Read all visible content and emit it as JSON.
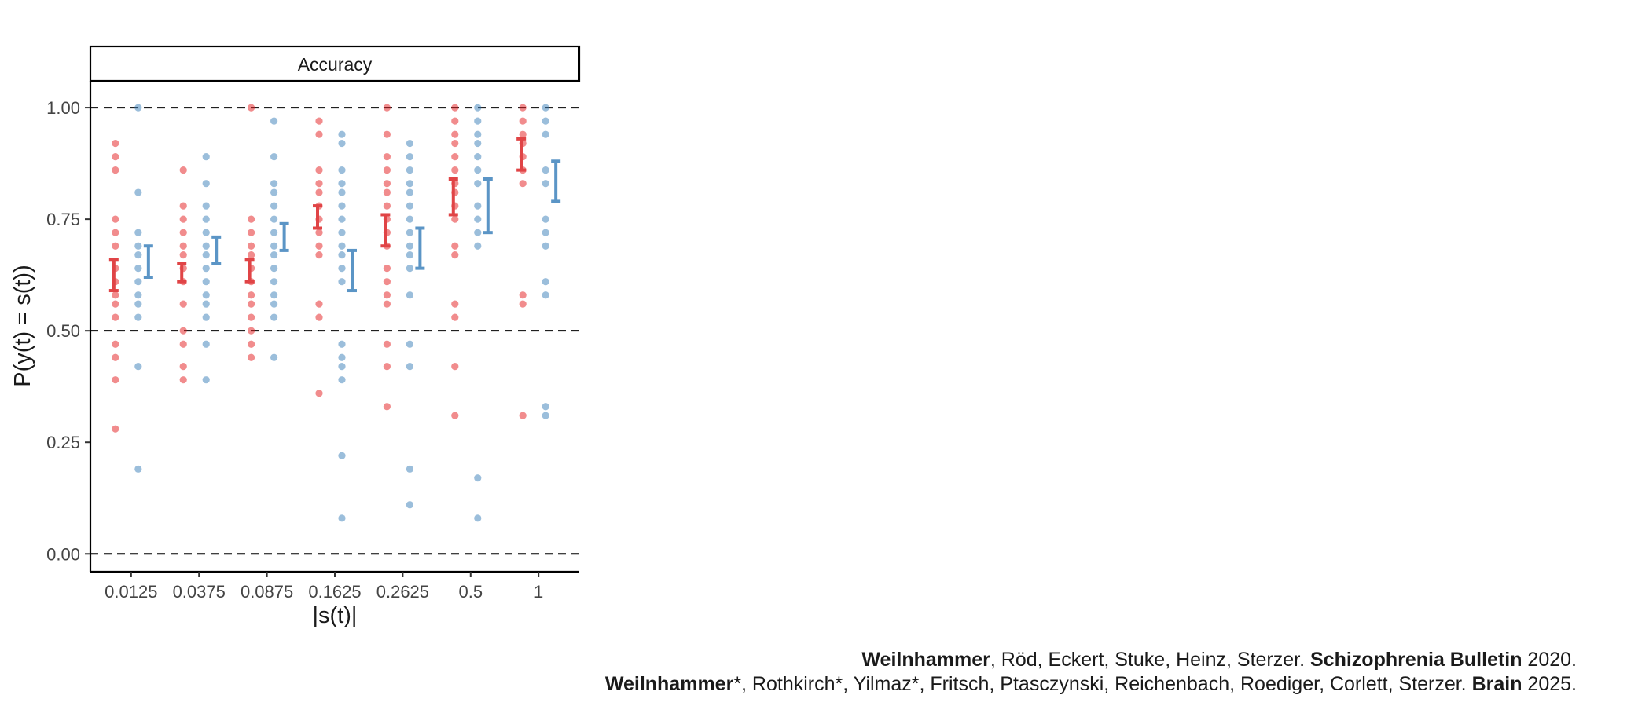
{
  "chart_data": {
    "type": "scatter",
    "title": "",
    "panel_title": "Accuracy",
    "xlabel": "|s(t)|",
    "ylabel": "P(y(t) = s(t))",
    "categories": [
      "0.0125",
      "0.0375",
      "0.0875",
      "0.1625",
      "0.2625",
      "0.5",
      "1"
    ],
    "ylim": [
      -0.04,
      1.06
    ],
    "yticks": [
      "0.00",
      "0.25",
      "0.50",
      "0.75",
      "1.00"
    ],
    "ytick_values": [
      0,
      0.25,
      0.5,
      0.75,
      1
    ],
    "reference_lines": [
      0,
      0.5,
      1
    ],
    "grid": false,
    "legend": "none",
    "series": [
      {
        "color": "#e41a1c",
        "points": [
          [
            0.92,
            0.89,
            0.86,
            0.75,
            0.72,
            0.69,
            0.64,
            0.61,
            0.58,
            0.56,
            0.53,
            0.47,
            0.44,
            0.39,
            0.28
          ],
          [
            0.86,
            0.78,
            0.75,
            0.72,
            0.69,
            0.67,
            0.64,
            0.61,
            0.56,
            0.5,
            0.47,
            0.42,
            0.39
          ],
          [
            1.0,
            0.75,
            0.72,
            0.69,
            0.67,
            0.64,
            0.61,
            0.58,
            0.56,
            0.53,
            0.5,
            0.47,
            0.44
          ],
          [
            0.97,
            0.94,
            0.86,
            0.83,
            0.81,
            0.78,
            0.75,
            0.72,
            0.69,
            0.67,
            0.56,
            0.53,
            0.36
          ],
          [
            1.0,
            0.94,
            0.89,
            0.86,
            0.83,
            0.81,
            0.78,
            0.75,
            0.72,
            0.69,
            0.64,
            0.61,
            0.58,
            0.56,
            0.47,
            0.42,
            0.33
          ],
          [
            1.0,
            0.97,
            0.94,
            0.92,
            0.89,
            0.86,
            0.83,
            0.81,
            0.78,
            0.75,
            0.69,
            0.67,
            0.56,
            0.53,
            0.42,
            0.31
          ],
          [
            1.0,
            0.97,
            0.94,
            0.92,
            0.89,
            0.86,
            0.83,
            0.58,
            0.56,
            0.31
          ]
        ],
        "error_bars": [
          [
            0.59,
            0.66
          ],
          [
            0.61,
            0.65
          ],
          [
            0.61,
            0.66
          ],
          [
            0.73,
            0.78
          ],
          [
            0.69,
            0.76
          ],
          [
            0.76,
            0.84
          ],
          [
            0.86,
            0.93
          ]
        ]
      },
      {
        "color": "#377eb8",
        "points": [
          [
            1.0,
            0.81,
            0.72,
            0.69,
            0.67,
            0.64,
            0.61,
            0.58,
            0.56,
            0.53,
            0.42,
            0.19
          ],
          [
            0.89,
            0.83,
            0.78,
            0.75,
            0.72,
            0.69,
            0.67,
            0.64,
            0.61,
            0.58,
            0.56,
            0.53,
            0.47,
            0.39
          ],
          [
            0.97,
            0.89,
            0.83,
            0.81,
            0.78,
            0.75,
            0.72,
            0.69,
            0.67,
            0.64,
            0.61,
            0.58,
            0.56,
            0.53,
            0.44
          ],
          [
            0.94,
            0.92,
            0.86,
            0.83,
            0.81,
            0.78,
            0.75,
            0.72,
            0.69,
            0.67,
            0.64,
            0.61,
            0.47,
            0.44,
            0.42,
            0.39,
            0.22,
            0.08
          ],
          [
            0.92,
            0.89,
            0.86,
            0.83,
            0.81,
            0.78,
            0.75,
            0.72,
            0.69,
            0.67,
            0.64,
            0.58,
            0.47,
            0.42,
            0.19,
            0.11
          ],
          [
            1.0,
            0.97,
            0.94,
            0.92,
            0.89,
            0.86,
            0.83,
            0.78,
            0.75,
            0.72,
            0.69,
            0.17,
            0.08
          ],
          [
            1.0,
            0.97,
            0.94,
            0.86,
            0.83,
            0.75,
            0.72,
            0.69,
            0.61,
            0.58,
            0.33,
            0.31
          ]
        ],
        "error_bars": [
          [
            0.62,
            0.69
          ],
          [
            0.65,
            0.71
          ],
          [
            0.68,
            0.74
          ],
          [
            0.59,
            0.68
          ],
          [
            0.64,
            0.73
          ],
          [
            0.72,
            0.84
          ],
          [
            0.79,
            0.88
          ]
        ]
      }
    ]
  },
  "citations": {
    "line1": {
      "author_bold": "Weilnhammer",
      "authors_rest": ", Röd, Eckert, Stuke, Heinz, Sterzer. ",
      "journal": "Schizophrenia Bulletin",
      "year": " 2020."
    },
    "line2": {
      "author_bold": "Weilnhammer",
      "authors_rest": "*, Rothkirch*, Yilmaz*, Fritsch, Ptasczynski, Reichenbach, Roediger, Corlett, Sterzer. ",
      "journal": "Brain",
      "year": " 2025."
    }
  }
}
